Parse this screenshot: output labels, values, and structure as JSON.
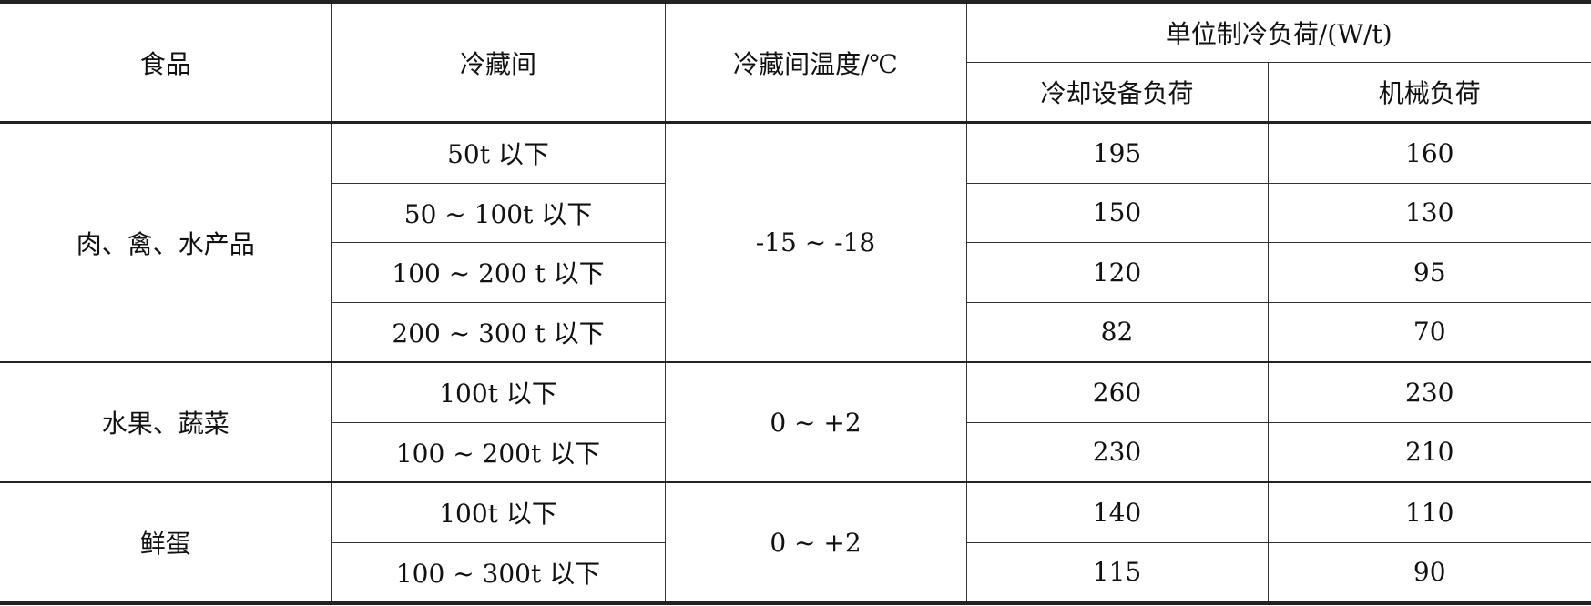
{
  "header": {
    "food": "食品",
    "room": "冷藏间",
    "temp": "冷藏间温度/℃",
    "load": "单位制冷负荷/(W/t)",
    "equipment_load": "冷却设备负荷",
    "machine_load": "机械负荷"
  },
  "groups": [
    {
      "food": "肉、禽、水产品",
      "temp": "-15 ~ -18",
      "rows": [
        {
          "room": "50t 以下",
          "equipment": "195",
          "machine": "160"
        },
        {
          "room": "50 ~ 100t 以下",
          "equipment": "150",
          "machine": "130"
        },
        {
          "room": "100 ~ 200 t 以下",
          "equipment": "120",
          "machine": "95"
        },
        {
          "room": "200 ~ 300 t 以下",
          "equipment": "82",
          "machine": "70"
        }
      ]
    },
    {
      "food": "水果、蔬菜",
      "temp": "0 ~ +2",
      "rows": [
        {
          "room": "100t 以下",
          "equipment": "260",
          "machine": "230"
        },
        {
          "room": "100 ~ 200t 以下",
          "equipment": "230",
          "machine": "210"
        }
      ]
    },
    {
      "food": "鲜蛋",
      "temp": "0 ~ +2",
      "rows": [
        {
          "room": "100t 以下",
          "equipment": "140",
          "machine": "110"
        },
        {
          "room": "100 ~ 300t 以下",
          "equipment": "115",
          "machine": "90"
        }
      ]
    }
  ]
}
